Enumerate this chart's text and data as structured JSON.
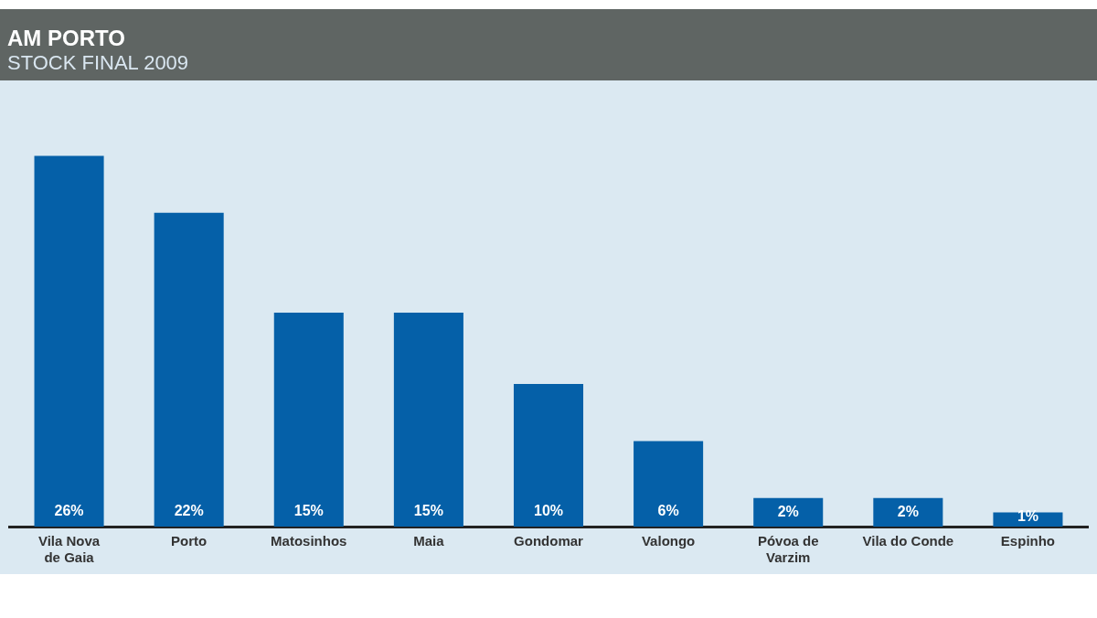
{
  "chart_data": {
    "type": "bar",
    "title": "AM PORTO",
    "subtitle": "STOCK FINAL 2009",
    "categories": [
      "Vila Nova de Gaia",
      "Porto",
      "Matosinhos",
      "Maia",
      "Gondomar",
      "Valongo",
      "Póvoa de Varzim",
      "Vila do Conde",
      "Espinho"
    ],
    "values": [
      26,
      22,
      15,
      15,
      10,
      6,
      2,
      2,
      1
    ],
    "value_labels": [
      "26%",
      "22%",
      "15%",
      "15%",
      "10%",
      "6%",
      "2%",
      "2%",
      "1%"
    ],
    "color": "#0560a8",
    "grid": false,
    "legend": false
  }
}
